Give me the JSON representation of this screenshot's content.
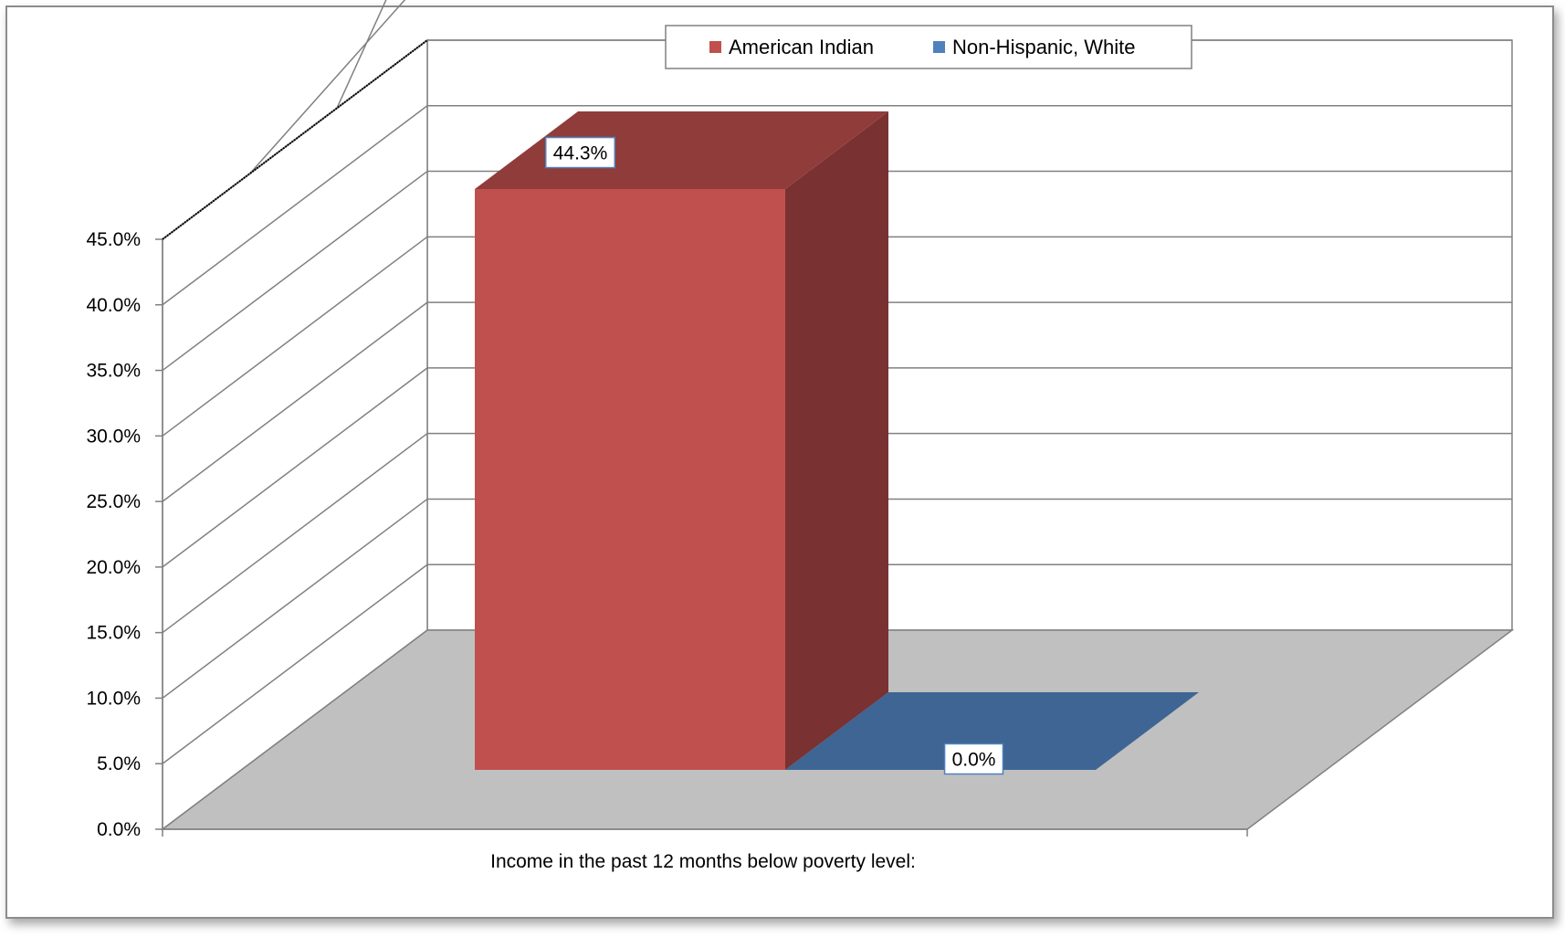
{
  "chart_data": {
    "type": "bar",
    "title": "",
    "categories": [
      "Income in the past 12 months below poverty level:"
    ],
    "series": [
      {
        "name": "American Indian",
        "values": [
          44.3
        ],
        "color": "#C0504D",
        "label": "44.3%"
      },
      {
        "name": "Non-Hispanic, White",
        "values": [
          0.0
        ],
        "color": "#4F81BD",
        "label": "0.0%"
      }
    ],
    "yticks": [
      "0.0%",
      "5.0%",
      "10.0%",
      "15.0%",
      "20.0%",
      "25.0%",
      "30.0%",
      "35.0%",
      "40.0%",
      "45.0%"
    ],
    "ylim": [
      0,
      45
    ],
    "xlabel": "Income in the past 12 months below poverty level:",
    "ylabel": "",
    "grid": true,
    "legend": "top-center",
    "style": "3d-column"
  }
}
